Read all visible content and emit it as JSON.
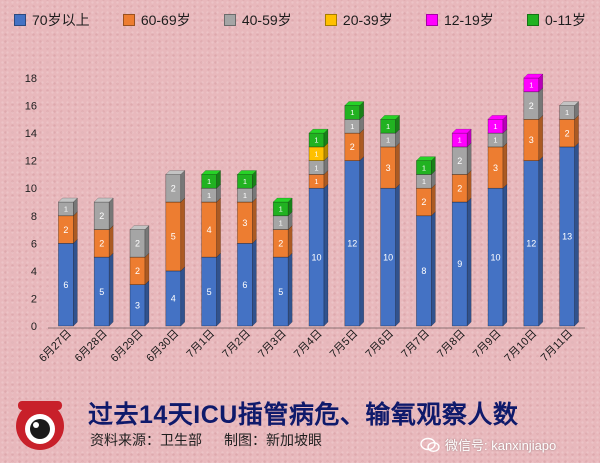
{
  "legend": [
    {
      "label": "70岁以上",
      "color": "#4472c4"
    },
    {
      "label": "60-69岁",
      "color": "#ed7d31"
    },
    {
      "label": "40-59岁",
      "color": "#a5a5a5"
    },
    {
      "label": "20-39岁",
      "color": "#ffc000"
    },
    {
      "label": "12-19岁",
      "color": "#ff00ff"
    },
    {
      "label": "0-11岁",
      "color": "#21b221"
    }
  ],
  "footer": {
    "title": "过去14天ICU插管病危、输氧观察人数",
    "source": "资料来源：卫生部",
    "credit": "制图：新加坡眼",
    "wechat": "微信号: kanxinjiapo"
  },
  "chart_data": {
    "type": "bar",
    "stacked": true,
    "categories": [
      "6月27日",
      "6月28日",
      "6月29日",
      "6月30日",
      "7月1日",
      "7月2日",
      "7月3日",
      "7月4日",
      "7月5日",
      "7月6日",
      "7月7日",
      "7月8日",
      "7月9日",
      "7月10日",
      "7月11日"
    ],
    "series": [
      {
        "name": "70岁以上",
        "color": "#4472c4",
        "values": [
          6,
          5,
          3,
          4,
          5,
          6,
          5,
          10,
          12,
          10,
          8,
          9,
          10,
          12,
          13
        ]
      },
      {
        "name": "60-69岁",
        "color": "#ed7d31",
        "values": [
          2,
          2,
          2,
          5,
          4,
          3,
          2,
          1,
          2,
          3,
          2,
          2,
          3,
          3,
          2
        ]
      },
      {
        "name": "40-59岁",
        "color": "#a5a5a5",
        "values": [
          1,
          2,
          2,
          2,
          1,
          1,
          1,
          1,
          1,
          1,
          1,
          2,
          1,
          2,
          1
        ]
      },
      {
        "name": "20-39岁",
        "color": "#ffc000",
        "values": [
          0,
          0,
          0,
          0,
          0,
          0,
          0,
          1,
          0,
          0,
          0,
          0,
          0,
          0,
          0
        ]
      },
      {
        "name": "12-19岁",
        "color": "#ff00ff",
        "values": [
          0,
          0,
          0,
          0,
          0,
          0,
          0,
          0,
          0,
          0,
          0,
          1,
          1,
          1,
          0
        ]
      },
      {
        "name": "0-11岁",
        "color": "#21b221",
        "values": [
          0,
          0,
          0,
          0,
          1,
          1,
          1,
          1,
          1,
          1,
          1,
          0,
          0,
          0,
          0
        ]
      }
    ],
    "y_ticks": [
      0,
      2,
      4,
      6,
      8,
      10,
      12,
      14,
      16,
      18
    ],
    "ylim": [
      0,
      18
    ],
    "grid": false,
    "legend_position": "top"
  }
}
